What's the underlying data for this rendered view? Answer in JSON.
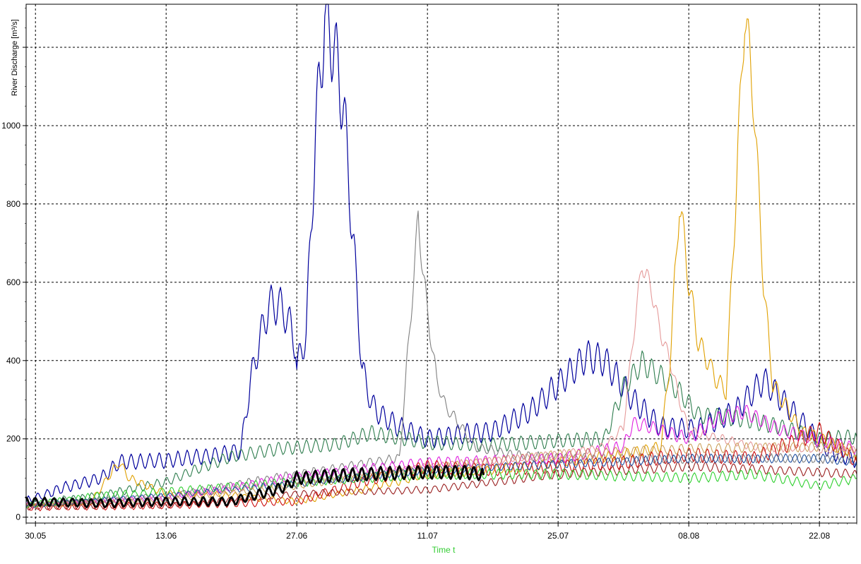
{
  "chart_data": {
    "type": "line",
    "title": "",
    "xlabel": "Time t",
    "ylabel": "River Discharge [m³/s]",
    "x_axis": {
      "type": "date",
      "min": "2000-05-29",
      "max": "2000-08-26",
      "ticks": [
        {
          "date": "2000-05-30",
          "label": "30.05"
        },
        {
          "date": "2000-06-13",
          "label": "13.06"
        },
        {
          "date": "2000-06-27",
          "label": "27.06"
        },
        {
          "date": "2000-07-11",
          "label": "11.07"
        },
        {
          "date": "2000-07-25",
          "label": "25.07"
        },
        {
          "date": "2000-08-08",
          "label": "08.08"
        },
        {
          "date": "2000-08-22",
          "label": "22.08"
        }
      ]
    },
    "y_axis": {
      "min": -15,
      "max": 1310,
      "ticks": [
        {
          "value": 0,
          "label": "0"
        },
        {
          "value": 200,
          "label": "200"
        },
        {
          "value": 400,
          "label": "400"
        },
        {
          "value": 600,
          "label": "600"
        },
        {
          "value": 800,
          "label": "800"
        },
        {
          "value": 1000,
          "label": "1000"
        },
        {
          "value": 1200,
          "label": ""
        }
      ]
    },
    "grid": true,
    "legend": "none",
    "colors": {
      "axis_title_x": "#33cc33",
      "grid": "#000000"
    },
    "series": [
      {
        "color": "#00009c",
        "width": 1.2,
        "osc": 18,
        "jitter": 4,
        "points": [
          [
            "2000-05-29",
            40
          ],
          [
            "2000-06-02",
            75
          ],
          [
            "2000-06-06",
            100
          ],
          [
            "2000-06-08",
            140
          ],
          [
            "2000-06-13",
            145
          ],
          [
            "2000-06-17",
            155
          ],
          [
            "2000-06-20",
            165
          ],
          [
            "2000-06-21",
            170
          ],
          [
            "2000-06-22",
            340
          ],
          [
            "2000-06-23",
            450
          ],
          [
            "2000-06-24",
            540
          ],
          [
            "2000-06-25",
            545
          ],
          [
            "2000-06-26",
            510
          ],
          [
            "2000-06-27",
            430
          ],
          [
            "2000-06-27",
            380
          ],
          [
            "2000-06-28",
            470
          ],
          [
            "2000-06-29",
            980
          ],
          [
            "2000-06-30",
            1280
          ],
          [
            "2000-07-01",
            1200
          ],
          [
            "2000-07-02",
            1050
          ],
          [
            "2000-07-03",
            720
          ],
          [
            "2000-07-04",
            380
          ],
          [
            "2000-07-05",
            290
          ],
          [
            "2000-07-06",
            260
          ],
          [
            "2000-07-08",
            230
          ],
          [
            "2000-07-11",
            200
          ],
          [
            "2000-07-14",
            210
          ],
          [
            "2000-07-18",
            220
          ],
          [
            "2000-07-22",
            270
          ],
          [
            "2000-07-25",
            340
          ],
          [
            "2000-07-28",
            410
          ],
          [
            "2000-07-30",
            400
          ],
          [
            "2000-08-02",
            300
          ],
          [
            "2000-08-05",
            230
          ],
          [
            "2000-08-09",
            225
          ],
          [
            "2000-08-13",
            270
          ],
          [
            "2000-08-16",
            350
          ],
          [
            "2000-08-18",
            300
          ],
          [
            "2000-08-21",
            220
          ],
          [
            "2000-08-23",
            170
          ],
          [
            "2000-08-26",
            145
          ]
        ]
      },
      {
        "color": "#2e7d4e",
        "width": 1.1,
        "osc": 14,
        "jitter": 3,
        "points": [
          [
            "2000-05-29",
            35
          ],
          [
            "2000-06-06",
            55
          ],
          [
            "2000-06-13",
            90
          ],
          [
            "2000-06-16",
            120
          ],
          [
            "2000-06-20",
            155
          ],
          [
            "2000-06-25",
            175
          ],
          [
            "2000-07-01",
            185
          ],
          [
            "2000-07-05",
            215
          ],
          [
            "2000-07-11",
            190
          ],
          [
            "2000-07-18",
            185
          ],
          [
            "2000-07-25",
            195
          ],
          [
            "2000-07-30",
            200
          ],
          [
            "2000-08-01",
            330
          ],
          [
            "2000-08-03",
            395
          ],
          [
            "2000-08-05",
            360
          ],
          [
            "2000-08-07",
            320
          ],
          [
            "2000-08-09",
            260
          ],
          [
            "2000-08-13",
            255
          ],
          [
            "2000-08-18",
            230
          ],
          [
            "2000-08-22",
            200
          ],
          [
            "2000-08-26",
            205
          ]
        ]
      },
      {
        "color": "#808080",
        "width": 1.1,
        "osc": 10,
        "jitter": 5,
        "points": [
          [
            "2000-05-29",
            30
          ],
          [
            "2000-06-13",
            55
          ],
          [
            "2000-06-27",
            110
          ],
          [
            "2000-07-05",
            140
          ],
          [
            "2000-07-08",
            150
          ],
          [
            "2000-07-09",
            450
          ],
          [
            "2000-07-10",
            760
          ],
          [
            "2000-07-11",
            520
          ],
          [
            "2000-07-12",
            350
          ],
          [
            "2000-07-13",
            280
          ],
          [
            "2000-07-14",
            250
          ],
          [
            "2000-07-16",
            180
          ],
          [
            "2000-07-20",
            160
          ],
          [
            "2000-07-25",
            150
          ],
          [
            "2000-08-08",
            150
          ],
          [
            "2000-08-26",
            150
          ]
        ]
      },
      {
        "color": "#e59a9a",
        "width": 1.1,
        "osc": 8,
        "jitter": 4,
        "points": [
          [
            "2000-05-29",
            30
          ],
          [
            "2000-06-13",
            50
          ],
          [
            "2000-06-27",
            90
          ],
          [
            "2000-07-11",
            130
          ],
          [
            "2000-07-25",
            160
          ],
          [
            "2000-07-30",
            180
          ],
          [
            "2000-08-01",
            230
          ],
          [
            "2000-08-02",
            450
          ],
          [
            "2000-08-03",
            650
          ],
          [
            "2000-08-04",
            580
          ],
          [
            "2000-08-05",
            470
          ],
          [
            "2000-08-06",
            400
          ],
          [
            "2000-08-07",
            300
          ],
          [
            "2000-08-08",
            220
          ],
          [
            "2000-08-15",
            180
          ],
          [
            "2000-08-26",
            170
          ]
        ]
      },
      {
        "color": "#e0a000",
        "width": 1.1,
        "osc": 12,
        "jitter": 4,
        "points": [
          [
            "2000-05-29",
            30
          ],
          [
            "2000-06-05",
            40
          ],
          [
            "2000-06-07",
            110
          ],
          [
            "2000-06-08",
            140
          ],
          [
            "2000-06-09",
            100
          ],
          [
            "2000-06-13",
            60
          ],
          [
            "2000-06-20",
            55
          ],
          [
            "2000-06-27",
            40
          ],
          [
            "2000-07-04",
            70
          ],
          [
            "2000-07-11",
            110
          ],
          [
            "2000-07-18",
            120
          ],
          [
            "2000-07-25",
            140
          ],
          [
            "2000-08-01",
            160
          ],
          [
            "2000-08-05",
            180
          ],
          [
            "2000-08-06",
            400
          ],
          [
            "2000-08-07",
            810
          ],
          [
            "2000-08-08",
            600
          ],
          [
            "2000-08-09",
            450
          ],
          [
            "2000-08-11",
            350
          ],
          [
            "2000-08-12",
            320
          ],
          [
            "2000-08-13",
            800
          ],
          [
            "2000-08-14",
            1300
          ],
          [
            "2000-08-15",
            1050
          ],
          [
            "2000-08-16",
            600
          ],
          [
            "2000-08-17",
            340
          ],
          [
            "2000-08-20",
            220
          ],
          [
            "2000-08-26",
            160
          ]
        ]
      },
      {
        "color": "#e020e0",
        "width": 1.1,
        "osc": 12,
        "jitter": 4,
        "points": [
          [
            "2000-05-29",
            30
          ],
          [
            "2000-06-13",
            50
          ],
          [
            "2000-06-20",
            75
          ],
          [
            "2000-06-27",
            105
          ],
          [
            "2000-07-11",
            140
          ],
          [
            "2000-07-25",
            150
          ],
          [
            "2000-08-01",
            180
          ],
          [
            "2000-08-02",
            240
          ],
          [
            "2000-08-04",
            230
          ],
          [
            "2000-08-06",
            215
          ],
          [
            "2000-08-08",
            200
          ],
          [
            "2000-08-11",
            250
          ],
          [
            "2000-08-14",
            270
          ],
          [
            "2000-08-18",
            220
          ],
          [
            "2000-08-26",
            175
          ]
        ]
      },
      {
        "color": "#cc1010",
        "width": 1.1,
        "osc": 16,
        "jitter": 3,
        "points": [
          [
            "2000-05-29",
            25
          ],
          [
            "2000-06-13",
            30
          ],
          [
            "2000-06-27",
            40
          ],
          [
            "2000-07-04",
            90
          ],
          [
            "2000-07-11",
            130
          ],
          [
            "2000-07-18",
            120
          ],
          [
            "2000-07-25",
            130
          ],
          [
            "2000-08-01",
            140
          ],
          [
            "2000-08-08",
            160
          ],
          [
            "2000-08-15",
            150
          ],
          [
            "2000-08-22",
            220
          ],
          [
            "2000-08-26",
            140
          ]
        ]
      },
      {
        "color": "#9a2020",
        "width": 1.1,
        "osc": 12,
        "jitter": 3,
        "points": [
          [
            "2000-05-29",
            25
          ],
          [
            "2000-06-13",
            30
          ],
          [
            "2000-06-27",
            60
          ],
          [
            "2000-07-11",
            70
          ],
          [
            "2000-07-18",
            90
          ],
          [
            "2000-07-25",
            110
          ],
          [
            "2000-08-08",
            130
          ],
          [
            "2000-08-22",
            115
          ],
          [
            "2000-08-26",
            110
          ]
        ]
      },
      {
        "color": "#30d030",
        "width": 1.1,
        "osc": 14,
        "jitter": 3,
        "points": [
          [
            "2000-05-29",
            30
          ],
          [
            "2000-06-06",
            55
          ],
          [
            "2000-06-13",
            65
          ],
          [
            "2000-06-27",
            90
          ],
          [
            "2000-07-11",
            110
          ],
          [
            "2000-07-25",
            110
          ],
          [
            "2000-08-08",
            100
          ],
          [
            "2000-08-15",
            110
          ],
          [
            "2000-08-22",
            80
          ],
          [
            "2000-08-26",
            100
          ]
        ]
      },
      {
        "color": "#2050a0",
        "width": 1.1,
        "osc": 10,
        "jitter": 3,
        "points": [
          [
            "2000-05-29",
            30
          ],
          [
            "2000-06-13",
            55
          ],
          [
            "2000-06-27",
            85
          ],
          [
            "2000-07-11",
            120
          ],
          [
            "2000-07-25",
            135
          ],
          [
            "2000-08-08",
            150
          ],
          [
            "2000-08-22",
            150
          ],
          [
            "2000-08-26",
            140
          ]
        ]
      },
      {
        "color": "#c89a50",
        "width": 1.0,
        "osc": 10,
        "jitter": 3,
        "points": [
          [
            "2000-05-29",
            30
          ],
          [
            "2000-06-13",
            45
          ],
          [
            "2000-06-27",
            80
          ],
          [
            "2000-07-11",
            125
          ],
          [
            "2000-07-25",
            160
          ],
          [
            "2000-08-08",
            175
          ],
          [
            "2000-08-22",
            180
          ],
          [
            "2000-08-26",
            175
          ]
        ]
      },
      {
        "color": "#000000",
        "width": 2.8,
        "osc": 18,
        "jitter": 2,
        "points": [
          [
            "2000-05-29",
            40
          ],
          [
            "2000-06-06",
            35
          ],
          [
            "2000-06-13",
            40
          ],
          [
            "2000-06-20",
            40
          ],
          [
            "2000-06-24",
            65
          ],
          [
            "2000-06-26",
            80
          ],
          [
            "2000-06-27",
            100
          ],
          [
            "2000-07-04",
            110
          ],
          [
            "2000-07-11",
            115
          ],
          [
            "2000-07-15",
            115
          ],
          [
            "2000-07-17",
            110
          ]
        ]
      }
    ]
  }
}
